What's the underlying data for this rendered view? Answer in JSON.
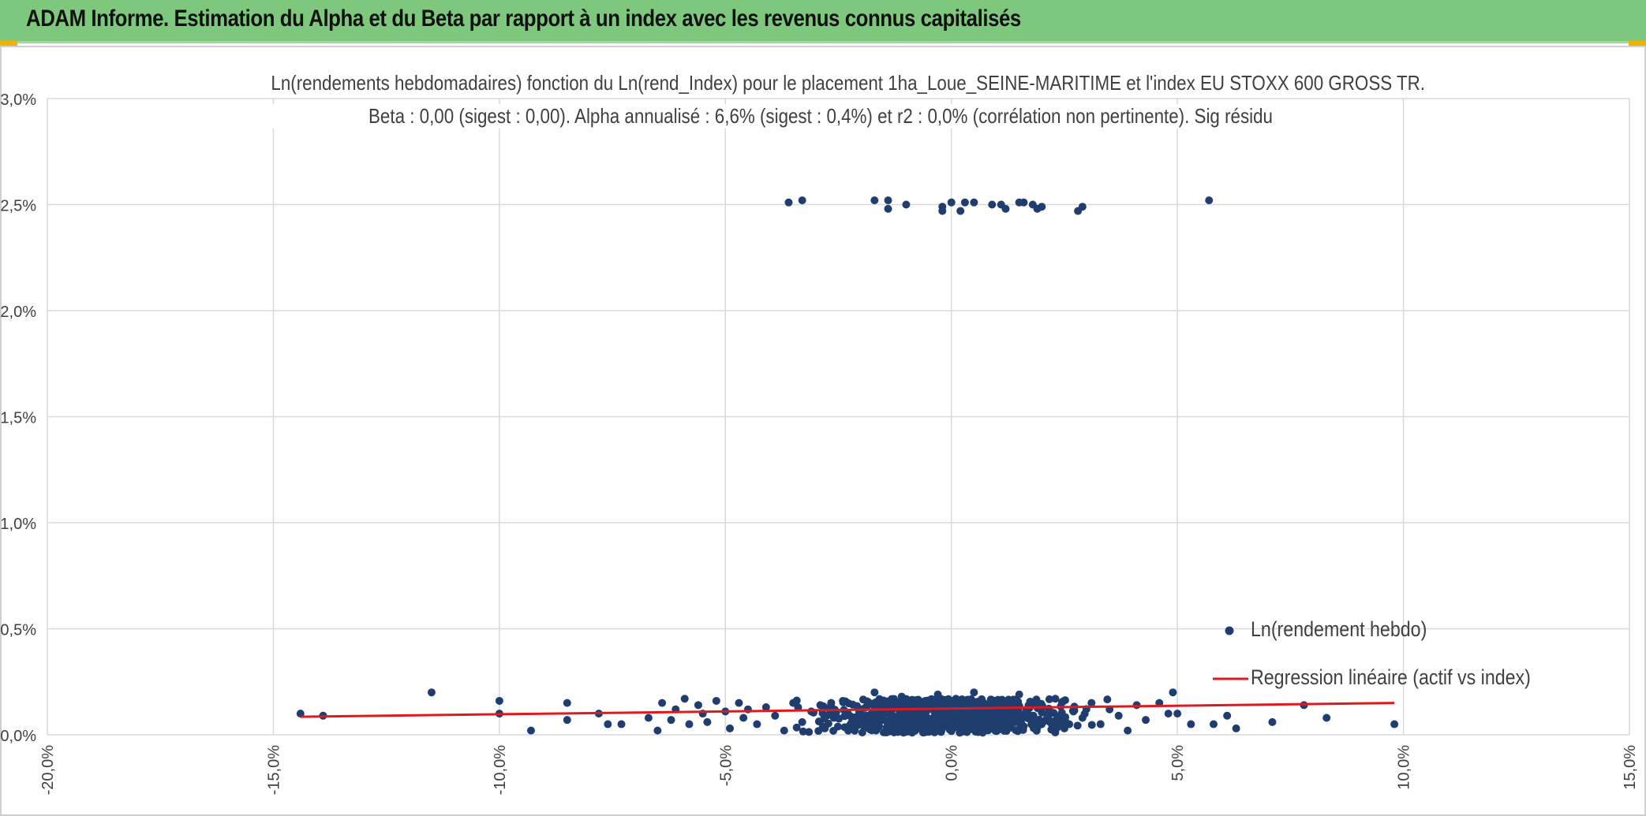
{
  "header": {
    "title": "ADAM Informe. Estimation du Alpha et du Beta par rapport à un index avec les revenus connus capitalisés",
    "background_color": "#7ec87e"
  },
  "chart_data": {
    "type": "scatter",
    "title_line1": "Ln(rendements hebdomadaires) fonction du Ln(rend_Index) pour le placement 1ha_Loue_SEINE-MARITIME et l'index EU STOXX 600 GROSS TR.",
    "title_line2": "Beta : 0,00 (sigest : 0,00). Alpha annualisé : 6,6% (sigest : 0,4%) et r2 : 0,0% (corrélation non pertinente). Sig résidu",
    "xlim": [
      -20.0,
      15.0
    ],
    "ylim": [
      0.0,
      3.0
    ],
    "x_ticks": [
      -20,
      -15,
      -10,
      -5,
      0,
      5,
      10,
      15
    ],
    "y_ticks": [
      0,
      0.5,
      1.0,
      1.5,
      2.0,
      2.5,
      3.0
    ],
    "x_tick_labels": [
      "-20,0%",
      "-15,0%",
      "-10,0%",
      "-5,0%",
      "0,0%",
      "5,0%",
      "10,0%",
      "15,0%"
    ],
    "y_tick_labels": [
      "0,0%",
      "0,5%",
      "1,0%",
      "1,5%",
      "2,0%",
      "2,5%",
      "3,0%"
    ],
    "grid": true,
    "legend_position": "bottom-right",
    "series": [
      {
        "name": "Ln(rendement hebdo)",
        "kind": "scatter",
        "color": "#1f3d6e",
        "points": [
          [
            -14.4,
            0.1
          ],
          [
            -13.9,
            0.09
          ],
          [
            -11.5,
            0.2
          ],
          [
            -10.0,
            0.16
          ],
          [
            -10.0,
            0.1
          ],
          [
            -9.3,
            0.02
          ],
          [
            -8.5,
            0.15
          ],
          [
            -8.5,
            0.07
          ],
          [
            -7.8,
            0.1
          ],
          [
            -7.6,
            0.05
          ],
          [
            -7.3,
            0.05
          ],
          [
            -6.7,
            0.08
          ],
          [
            -6.5,
            0.02
          ],
          [
            -6.4,
            0.15
          ],
          [
            -6.2,
            0.07
          ],
          [
            -6.1,
            0.12
          ],
          [
            -5.9,
            0.17
          ],
          [
            -5.8,
            0.05
          ],
          [
            -5.6,
            0.14
          ],
          [
            -5.5,
            0.1
          ],
          [
            -5.4,
            0.06
          ],
          [
            -5.2,
            0.16
          ],
          [
            -5.0,
            0.11
          ],
          [
            -4.9,
            0.03
          ],
          [
            -4.7,
            0.15
          ],
          [
            -4.6,
            0.08
          ],
          [
            -4.5,
            0.12
          ],
          [
            -4.3,
            0.05
          ],
          [
            -4.1,
            0.13
          ],
          [
            -3.9,
            0.09
          ],
          [
            -3.7,
            0.02
          ],
          [
            -3.5,
            0.15
          ],
          [
            -3.3,
            0.06
          ],
          [
            -3.1,
            0.11
          ],
          [
            -2.9,
            0.14
          ],
          [
            -2.8,
            0.03
          ],
          [
            -2.6,
            0.08
          ],
          [
            -2.4,
            0.16
          ],
          [
            -2.2,
            0.05
          ],
          [
            -2.0,
            0.12
          ],
          [
            -1.9,
            0.09
          ],
          [
            -1.7,
            0.2
          ],
          [
            -1.6,
            0.04
          ],
          [
            -1.4,
            0.13
          ],
          [
            -1.2,
            0.07
          ],
          [
            -1.1,
            0.18
          ],
          [
            -0.9,
            0.1
          ],
          [
            -0.8,
            0.02
          ],
          [
            -0.6,
            0.15
          ],
          [
            -0.5,
            0.06
          ],
          [
            -0.3,
            0.19
          ],
          [
            -0.2,
            0.11
          ],
          [
            -0.1,
            0.04
          ],
          [
            0.1,
            0.17
          ],
          [
            0.2,
            0.08
          ],
          [
            0.4,
            0.13
          ],
          [
            0.5,
            0.2
          ],
          [
            0.7,
            0.03
          ],
          [
            0.8,
            0.1
          ],
          [
            1.0,
            0.16
          ],
          [
            1.1,
            0.06
          ],
          [
            1.3,
            0.12
          ],
          [
            1.5,
            0.19
          ],
          [
            1.6,
            0.04
          ],
          [
            1.8,
            0.09
          ],
          [
            2.0,
            0.14
          ],
          [
            2.1,
            0.07
          ],
          [
            2.3,
            0.17
          ],
          [
            2.5,
            0.03
          ],
          [
            2.7,
            0.11
          ],
          [
            2.9,
            0.08
          ],
          [
            3.1,
            0.15
          ],
          [
            3.3,
            0.05
          ],
          [
            3.5,
            0.12
          ],
          [
            3.7,
            0.09
          ],
          [
            3.9,
            0.02
          ],
          [
            4.1,
            0.14
          ],
          [
            4.3,
            0.07
          ],
          [
            4.6,
            0.15
          ],
          [
            4.8,
            0.1
          ],
          [
            4.9,
            0.2
          ],
          [
            5.0,
            0.1
          ],
          [
            5.3,
            0.05
          ],
          [
            5.8,
            0.05
          ],
          [
            6.1,
            0.09
          ],
          [
            6.3,
            0.03
          ],
          [
            7.1,
            0.06
          ],
          [
            7.8,
            0.14
          ],
          [
            8.3,
            0.08
          ],
          [
            9.8,
            0.05
          ],
          [
            -3.6,
            2.51
          ],
          [
            -3.3,
            2.52
          ],
          [
            -1.7,
            2.52
          ],
          [
            -1.4,
            2.52
          ],
          [
            -1.4,
            2.48
          ],
          [
            -1.0,
            2.5
          ],
          [
            -0.2,
            2.49
          ],
          [
            -0.2,
            2.47
          ],
          [
            0.0,
            2.51
          ],
          [
            0.2,
            2.47
          ],
          [
            0.3,
            2.51
          ],
          [
            0.5,
            2.51
          ],
          [
            0.9,
            2.5
          ],
          [
            1.1,
            2.5
          ],
          [
            1.2,
            2.48
          ],
          [
            1.5,
            2.51
          ],
          [
            1.6,
            2.51
          ],
          [
            1.8,
            2.5
          ],
          [
            1.9,
            2.48
          ],
          [
            2.0,
            2.49
          ],
          [
            2.8,
            2.47
          ],
          [
            2.9,
            2.49
          ],
          [
            5.7,
            2.52
          ]
        ]
      },
      {
        "name": "Regression linéaire (actif vs index)",
        "kind": "line",
        "color": "#e0191e",
        "points": [
          [
            -14.4,
            0.085
          ],
          [
            9.8,
            0.15
          ]
        ]
      }
    ]
  }
}
